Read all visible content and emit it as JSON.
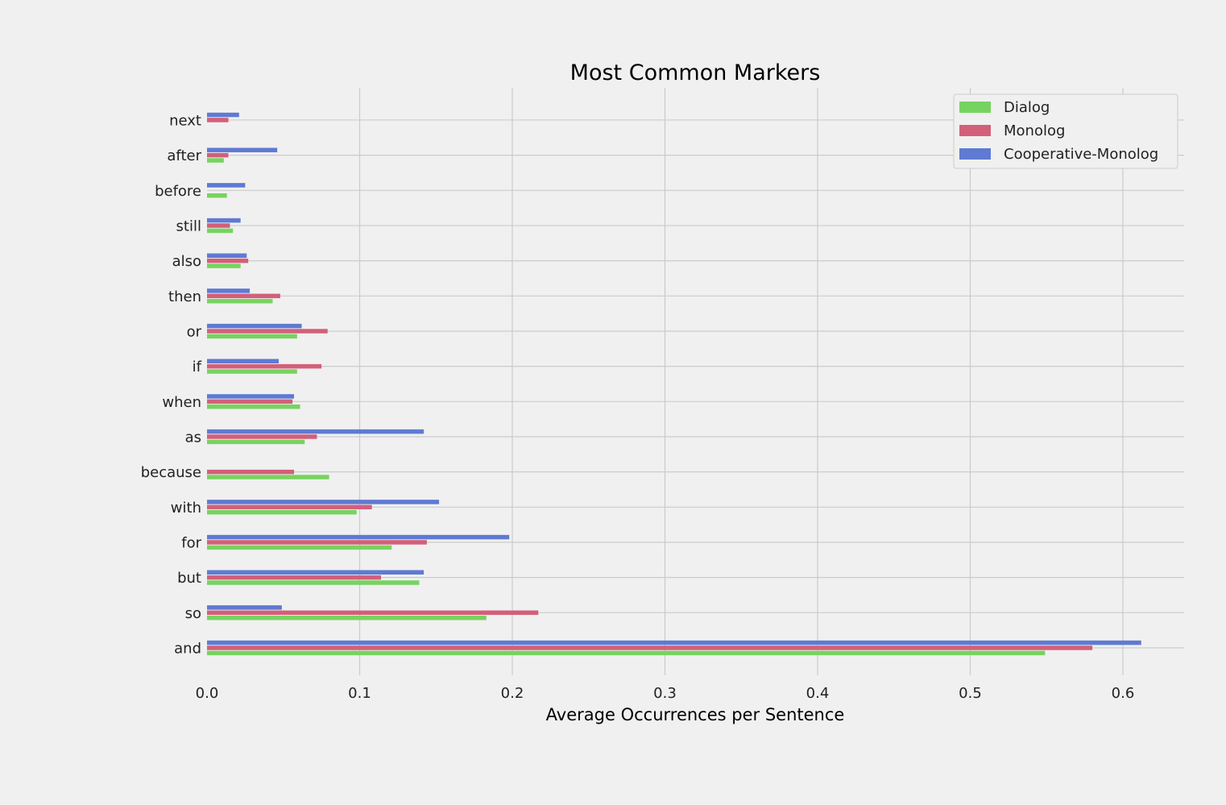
{
  "chart_data": {
    "type": "bar",
    "orientation": "horizontal",
    "title": "Most Common Markers",
    "xlabel": "Average Occurrences per Sentence",
    "ylabel": "",
    "xlim": [
      0,
      0.64
    ],
    "x_ticks": [
      "0.0",
      "0.1",
      "0.2",
      "0.3",
      "0.4",
      "0.5",
      "0.6"
    ],
    "grid": true,
    "legend_position": "top-right",
    "categories": [
      "and",
      "so",
      "but",
      "for",
      "with",
      "because",
      "as",
      "when",
      "if",
      "or",
      "then",
      "also",
      "still",
      "before",
      "after",
      "next"
    ],
    "series": [
      {
        "name": "Dialog",
        "color": "#77d35f",
        "values": [
          0.549,
          0.183,
          0.139,
          0.121,
          0.098,
          0.08,
          0.064,
          0.061,
          0.059,
          0.059,
          0.043,
          0.022,
          0.017,
          0.013,
          0.011,
          0.0
        ]
      },
      {
        "name": "Monolog",
        "color": "#d35f7a",
        "values": [
          0.58,
          0.217,
          0.114,
          0.144,
          0.108,
          0.057,
          0.072,
          0.056,
          0.075,
          0.079,
          0.048,
          0.027,
          0.015,
          0.0,
          0.014,
          0.014
        ]
      },
      {
        "name": "Cooperative-Monolog",
        "color": "#5f7ad3",
        "values": [
          0.612,
          0.049,
          0.142,
          0.198,
          0.152,
          0.0,
          0.142,
          0.057,
          0.047,
          0.062,
          0.028,
          0.026,
          0.022,
          0.025,
          0.046,
          0.021
        ]
      }
    ]
  }
}
